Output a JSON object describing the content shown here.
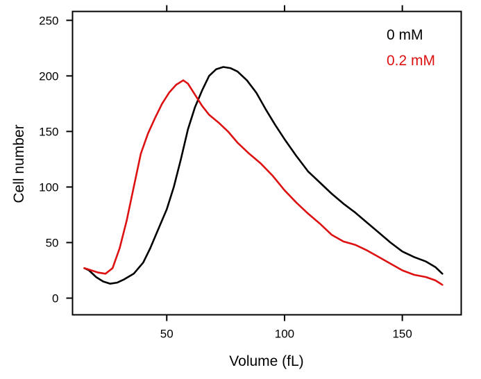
{
  "chart_data": {
    "type": "line",
    "title": "",
    "xlabel": "Volume (fL)",
    "ylabel": "Cell number",
    "xlim": [
      10,
      175
    ],
    "ylim": [
      -15,
      258
    ],
    "xticks": [
      50,
      100,
      150
    ],
    "yticks": [
      0,
      50,
      100,
      150,
      200,
      250
    ],
    "grid": false,
    "legend_position": "top-right",
    "series": [
      {
        "name": "0 mM",
        "color": "#000000",
        "points": [
          [
            15,
            27
          ],
          [
            17,
            25
          ],
          [
            20,
            19
          ],
          [
            23,
            15
          ],
          [
            26,
            13
          ],
          [
            29,
            14
          ],
          [
            32,
            17
          ],
          [
            36,
            22
          ],
          [
            40,
            32
          ],
          [
            43,
            45
          ],
          [
            46,
            60
          ],
          [
            50,
            80
          ],
          [
            53,
            100
          ],
          [
            56,
            125
          ],
          [
            59,
            152
          ],
          [
            62,
            172
          ],
          [
            65,
            187
          ],
          [
            68,
            200
          ],
          [
            71,
            206
          ],
          [
            74,
            208
          ],
          [
            77,
            207
          ],
          [
            80,
            204
          ],
          [
            84,
            196
          ],
          [
            88,
            185
          ],
          [
            92,
            170
          ],
          [
            96,
            156
          ],
          [
            100,
            143
          ],
          [
            105,
            128
          ],
          [
            110,
            114
          ],
          [
            115,
            104
          ],
          [
            120,
            94
          ],
          [
            125,
            85
          ],
          [
            130,
            77
          ],
          [
            135,
            68
          ],
          [
            140,
            59
          ],
          [
            145,
            50
          ],
          [
            150,
            42
          ],
          [
            155,
            37
          ],
          [
            160,
            33
          ],
          [
            164,
            28
          ],
          [
            167,
            22
          ]
        ]
      },
      {
        "name": "0.2 mM",
        "color": "#dd1111",
        "points": [
          [
            15,
            27
          ],
          [
            18,
            25
          ],
          [
            21,
            23
          ],
          [
            24,
            22
          ],
          [
            27,
            27
          ],
          [
            30,
            45
          ],
          [
            33,
            70
          ],
          [
            36,
            100
          ],
          [
            39,
            130
          ],
          [
            42,
            148
          ],
          [
            45,
            162
          ],
          [
            48,
            175
          ],
          [
            51,
            185
          ],
          [
            54,
            192
          ],
          [
            57,
            196
          ],
          [
            59,
            193
          ],
          [
            62,
            183
          ],
          [
            65,
            173
          ],
          [
            68,
            165
          ],
          [
            72,
            158
          ],
          [
            76,
            150
          ],
          [
            80,
            140
          ],
          [
            85,
            130
          ],
          [
            90,
            121
          ],
          [
            95,
            110
          ],
          [
            100,
            97
          ],
          [
            105,
            86
          ],
          [
            110,
            76
          ],
          [
            115,
            67
          ],
          [
            120,
            57
          ],
          [
            125,
            51
          ],
          [
            130,
            48
          ],
          [
            135,
            43
          ],
          [
            140,
            37
          ],
          [
            145,
            31
          ],
          [
            150,
            25
          ],
          [
            155,
            21
          ],
          [
            160,
            19
          ],
          [
            164,
            16
          ],
          [
            167,
            12
          ]
        ]
      }
    ]
  }
}
